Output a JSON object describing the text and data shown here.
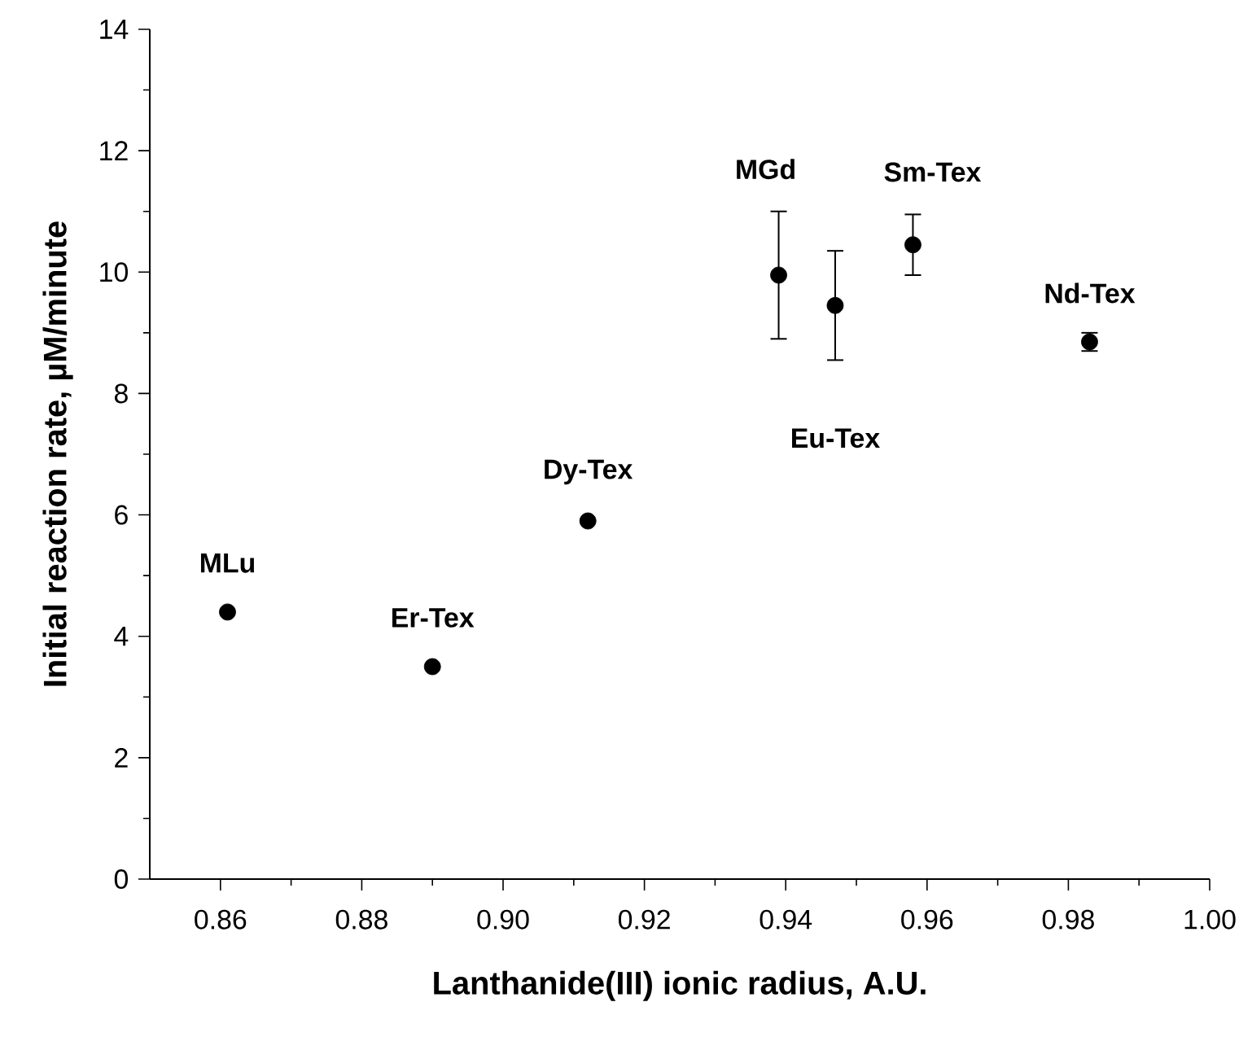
{
  "chart_data": {
    "type": "scatter",
    "xlabel": "Lanthanide(III) ionic radius, A.U.",
    "ylabel": "Initial reaction rate, µM/minute",
    "x": [
      0.861,
      0.89,
      0.912,
      0.939,
      0.947,
      0.958,
      0.983
    ],
    "values": [
      4.4,
      3.5,
      5.9,
      9.95,
      9.45,
      10.45,
      8.85
    ],
    "errors": [
      null,
      null,
      null,
      1.05,
      0.9,
      0.5,
      0.15
    ],
    "color": "#000000",
    "marker": "circle",
    "xlim": [
      0.85,
      1.0
    ],
    "xticks": [
      {
        "value": 0.86,
        "label": "0.86"
      },
      {
        "value": 0.88,
        "label": "0.88"
      },
      {
        "value": 0.9,
        "label": "0.90"
      },
      {
        "value": 0.92,
        "label": "0.92"
      },
      {
        "value": 0.94,
        "label": "0.94"
      },
      {
        "value": 0.96,
        "label": "0.96"
      },
      {
        "value": 0.98,
        "label": "0.98"
      },
      {
        "value": 1.0,
        "label": "1.00"
      }
    ],
    "ylim": [
      0,
      14
    ],
    "yticks": [
      0,
      2,
      4,
      6,
      8,
      10,
      12,
      14
    ],
    "grid": false,
    "annotations": [
      {
        "text": "MLu",
        "x": 0.861,
        "y": 4.4
      },
      {
        "text": "Er-Tex",
        "x": 0.89,
        "y": 3.5
      },
      {
        "text": "Dy-Tex",
        "x": 0.912,
        "y": 5.9
      },
      "MGd",
      "Eu-Tex",
      {
        "text": "Sm-Tex",
        "x": 0.958,
        "y": 10.45
      },
      {
        "text": "Nd-Tex",
        "x": 0.983,
        "y": 8.85
      }
    ]
  }
}
